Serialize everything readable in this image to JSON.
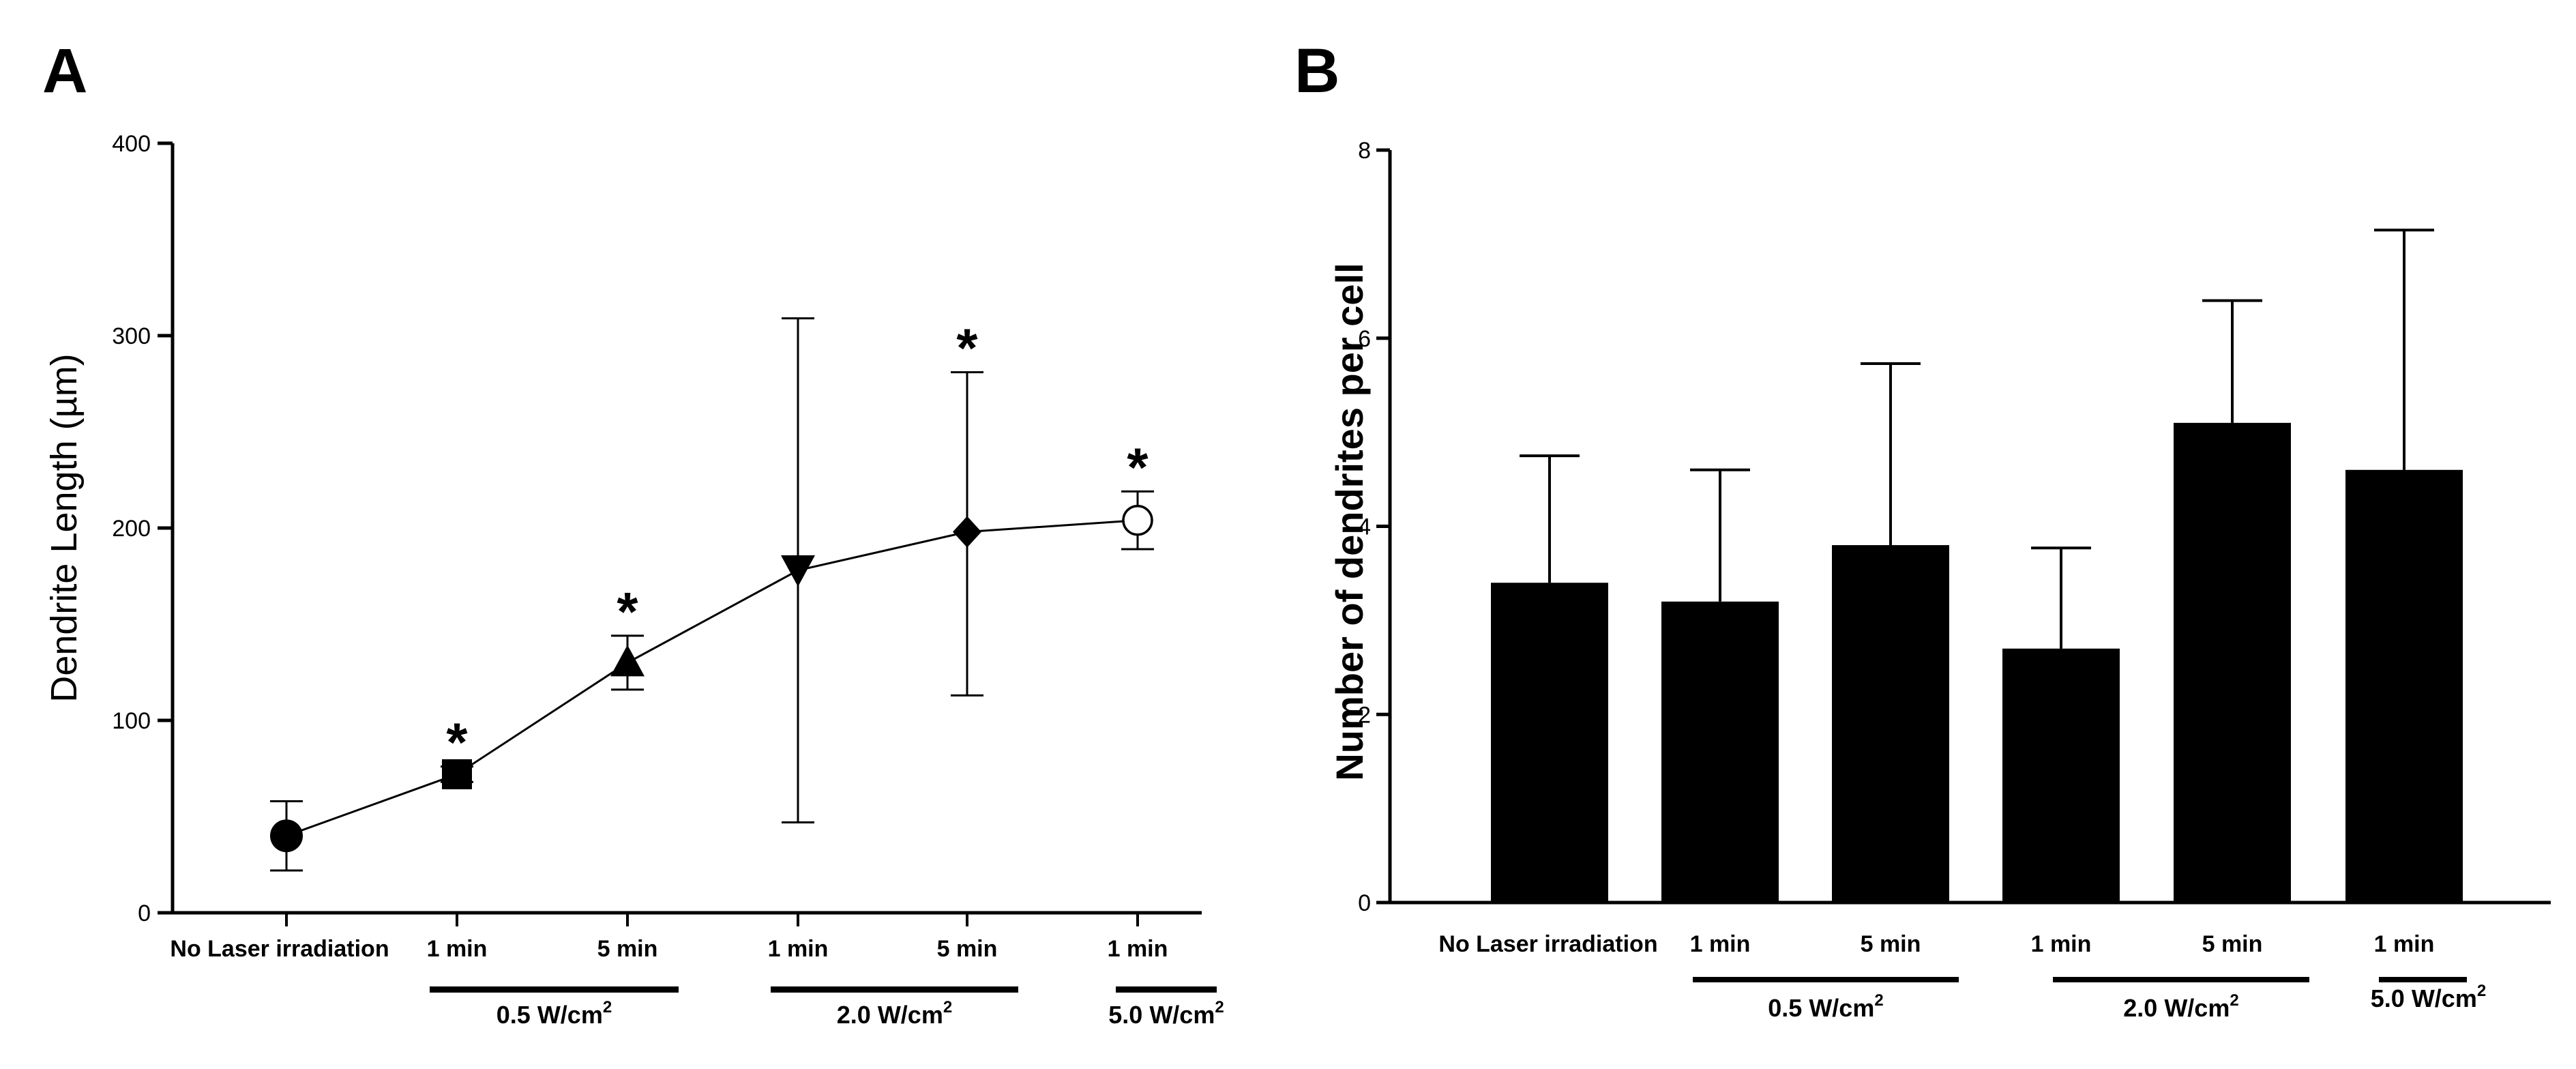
{
  "chart_data": [
    {
      "panel": "A",
      "type": "line",
      "ylabel": "Dendrite Length (µm)",
      "ylim": [
        0,
        400
      ],
      "yticks": [
        0,
        100,
        200,
        300,
        400
      ],
      "categories": [
        "No Laser irradiation",
        "1 min",
        "5 min",
        "1 min",
        "5 min",
        "1 min"
      ],
      "values": [
        40,
        72,
        130,
        178,
        198,
        204
      ],
      "error_low": [
        22,
        68,
        116,
        47,
        113,
        189
      ],
      "error_high": [
        58,
        76,
        144,
        309,
        281,
        219
      ],
      "markers": [
        "filled-circle",
        "filled-square",
        "filled-triangle-up",
        "filled-triangle-down",
        "filled-diamond",
        "open-circle"
      ],
      "significance": [
        "",
        "*",
        "*",
        "",
        "*",
        "*"
      ],
      "groups": [
        {
          "label": "0.5 W/cm",
          "superscript": "2",
          "from": 1,
          "to": 2
        },
        {
          "label": "2.0 W/cm",
          "superscript": "2",
          "from": 3,
          "to": 4
        },
        {
          "label": "5.0 W/cm",
          "superscript": "2",
          "from": 5,
          "to": 5
        }
      ]
    },
    {
      "panel": "B",
      "type": "bar",
      "ylabel": "Number of dendrites per cell",
      "ylim": [
        0,
        8
      ],
      "yticks": [
        0,
        2,
        4,
        6,
        8
      ],
      "categories": [
        "No Laser irradiation",
        "1 min",
        "5 min",
        "1 min",
        "5 min",
        "1 min"
      ],
      "values": [
        3.4,
        3.2,
        3.8,
        2.7,
        5.1,
        4.6
      ],
      "error_high": [
        4.75,
        4.6,
        5.73,
        3.77,
        6.4,
        7.15
      ],
      "groups": [
        {
          "label": "0.5 W/cm",
          "superscript": "2",
          "from": 1,
          "to": 2
        },
        {
          "label": "2.0 W/cm",
          "superscript": "2",
          "from": 3,
          "to": 4
        },
        {
          "label": "5.0 W/cm",
          "superscript": "2",
          "from": 5,
          "to": 5
        }
      ]
    }
  ]
}
